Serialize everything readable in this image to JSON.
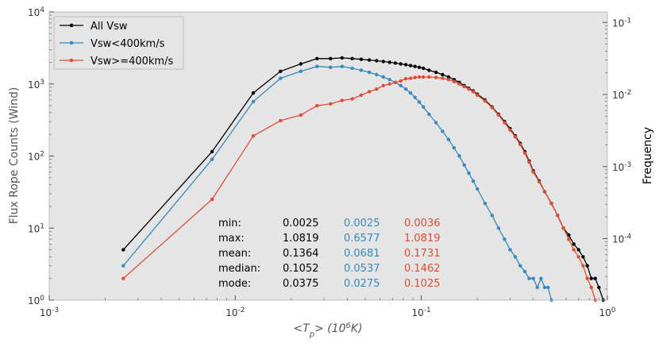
{
  "chart_data": {
    "type": "line",
    "xscale": "log",
    "yscale": "log",
    "xlabel": "<T_p> (10^6 K)",
    "xlabel_parts": {
      "prefix": "<T",
      "sub": "p",
      "suffix": "> (10",
      "sup": "6",
      "end": "K)"
    },
    "ylabel": "Flux Rope Counts (Wind)",
    "y2label": "Frequency",
    "xlim": [
      0.001,
      1
    ],
    "ylim": [
      1,
      10000
    ],
    "y2lim": [
      1.4e-05,
      0.14
    ],
    "grid": false,
    "legend_position": "top-left",
    "x_ticks": [
      {
        "value": 0.001,
        "base": "10",
        "exp": "-3"
      },
      {
        "value": 0.01,
        "base": "10",
        "exp": "-2"
      },
      {
        "value": 0.1,
        "base": "10",
        "exp": "-1"
      },
      {
        "value": 1,
        "base": "10",
        "exp": "0"
      }
    ],
    "y_ticks": [
      {
        "value": 1,
        "base": "10",
        "exp": "0"
      },
      {
        "value": 10,
        "base": "10",
        "exp": "1"
      },
      {
        "value": 100,
        "base": "10",
        "exp": "2"
      },
      {
        "value": 1000,
        "base": "10",
        "exp": "3"
      },
      {
        "value": 10000,
        "base": "10",
        "exp": "4"
      }
    ],
    "y2_ticks": [
      {
        "value": 0.0001,
        "base": "10",
        "exp": "-4"
      },
      {
        "value": 0.001,
        "base": "10",
        "exp": "-3"
      },
      {
        "value": 0.01,
        "base": "10",
        "exp": "-2"
      },
      {
        "value": 0.1,
        "base": "10",
        "exp": "-1"
      }
    ],
    "series": [
      {
        "name": "All Vsw",
        "color": "#000000",
        "x": [
          0.0025,
          0.0075,
          0.0125,
          0.0175,
          0.0225,
          0.0275,
          0.0325,
          0.0375,
          0.0425,
          0.0475,
          0.0525,
          0.0575,
          0.0625,
          0.0675,
          0.0725,
          0.0775,
          0.0825,
          0.0875,
          0.0925,
          0.0975,
          0.1025,
          0.11,
          0.12,
          0.13,
          0.14,
          0.15,
          0.16,
          0.17,
          0.18,
          0.19,
          0.2,
          0.22,
          0.24,
          0.26,
          0.28,
          0.3,
          0.32,
          0.34,
          0.36,
          0.38,
          0.4,
          0.43,
          0.46,
          0.5,
          0.54,
          0.58,
          0.62,
          0.66,
          0.7,
          0.74,
          0.78,
          0.82,
          0.86,
          0.9,
          0.95
        ],
        "values": [
          5,
          115,
          750,
          1500,
          1900,
          2250,
          2250,
          2300,
          2250,
          2200,
          2150,
          2100,
          2050,
          2000,
          1950,
          1900,
          1850,
          1800,
          1750,
          1700,
          1650,
          1550,
          1450,
          1350,
          1250,
          1150,
          1050,
          950,
          870,
          800,
          720,
          600,
          480,
          380,
          300,
          240,
          190,
          150,
          115,
          85,
          62,
          45,
          32,
          22,
          15,
          10,
          8,
          6,
          5,
          4,
          3,
          2,
          2,
          1.5,
          1
        ]
      },
      {
        "name": "Vsw<400km/s",
        "color": "#348abd",
        "x": [
          0.0025,
          0.0075,
          0.0125,
          0.0175,
          0.0225,
          0.0275,
          0.0325,
          0.0375,
          0.0425,
          0.0475,
          0.0525,
          0.0575,
          0.0625,
          0.0675,
          0.0725,
          0.0775,
          0.0825,
          0.0875,
          0.0925,
          0.0975,
          0.1025,
          0.11,
          0.12,
          0.13,
          0.14,
          0.15,
          0.16,
          0.17,
          0.18,
          0.19,
          0.2,
          0.22,
          0.24,
          0.26,
          0.28,
          0.3,
          0.32,
          0.34,
          0.36,
          0.38,
          0.4,
          0.42,
          0.44,
          0.46,
          0.48,
          0.5
        ],
        "values": [
          3,
          90,
          570,
          1200,
          1500,
          1750,
          1700,
          1750,
          1650,
          1550,
          1450,
          1350,
          1250,
          1150,
          1050,
          950,
          850,
          750,
          650,
          560,
          480,
          380,
          290,
          220,
          170,
          130,
          100,
          75,
          58,
          45,
          35,
          22,
          15,
          10,
          7,
          5,
          4,
          3,
          2.5,
          2,
          2,
          1.5,
          2,
          1.5,
          1.5,
          1
        ]
      },
      {
        "name": "Vsw>=400km/s",
        "color": "#e24a33",
        "x": [
          0.0025,
          0.0075,
          0.0125,
          0.0175,
          0.0225,
          0.0275,
          0.0325,
          0.0375,
          0.0425,
          0.0475,
          0.0525,
          0.0575,
          0.0625,
          0.0675,
          0.0725,
          0.0775,
          0.0825,
          0.0875,
          0.0925,
          0.0975,
          0.1025,
          0.11,
          0.12,
          0.13,
          0.14,
          0.15,
          0.16,
          0.17,
          0.18,
          0.19,
          0.2,
          0.22,
          0.24,
          0.26,
          0.28,
          0.3,
          0.32,
          0.34,
          0.36,
          0.38,
          0.4,
          0.43,
          0.46,
          0.5,
          0.54,
          0.58,
          0.62,
          0.66,
          0.7,
          0.74,
          0.78,
          0.82,
          0.86
        ],
        "values": [
          2,
          25,
          190,
          310,
          370,
          500,
          530,
          590,
          620,
          700,
          780,
          850,
          950,
          1000,
          1050,
          1100,
          1180,
          1200,
          1230,
          1250,
          1250,
          1250,
          1230,
          1200,
          1150,
          1080,
          1000,
          920,
          850,
          780,
          700,
          580,
          470,
          370,
          290,
          230,
          185,
          145,
          110,
          82,
          60,
          44,
          32,
          22,
          15,
          10,
          7,
          5,
          4,
          3,
          2,
          1.5,
          1
        ]
      }
    ],
    "stats": {
      "labels": [
        "min:",
        "max:",
        "mean:",
        "median:",
        "mode:"
      ],
      "all": [
        "0.0025",
        "1.0819",
        "0.1364",
        "0.1052",
        "0.0375"
      ],
      "low": [
        "0.0025",
        "0.6577",
        "0.0681",
        "0.0537",
        "0.0275"
      ],
      "high": [
        "0.0036",
        "1.0819",
        "0.1731",
        "0.1462",
        "0.1025"
      ]
    }
  }
}
